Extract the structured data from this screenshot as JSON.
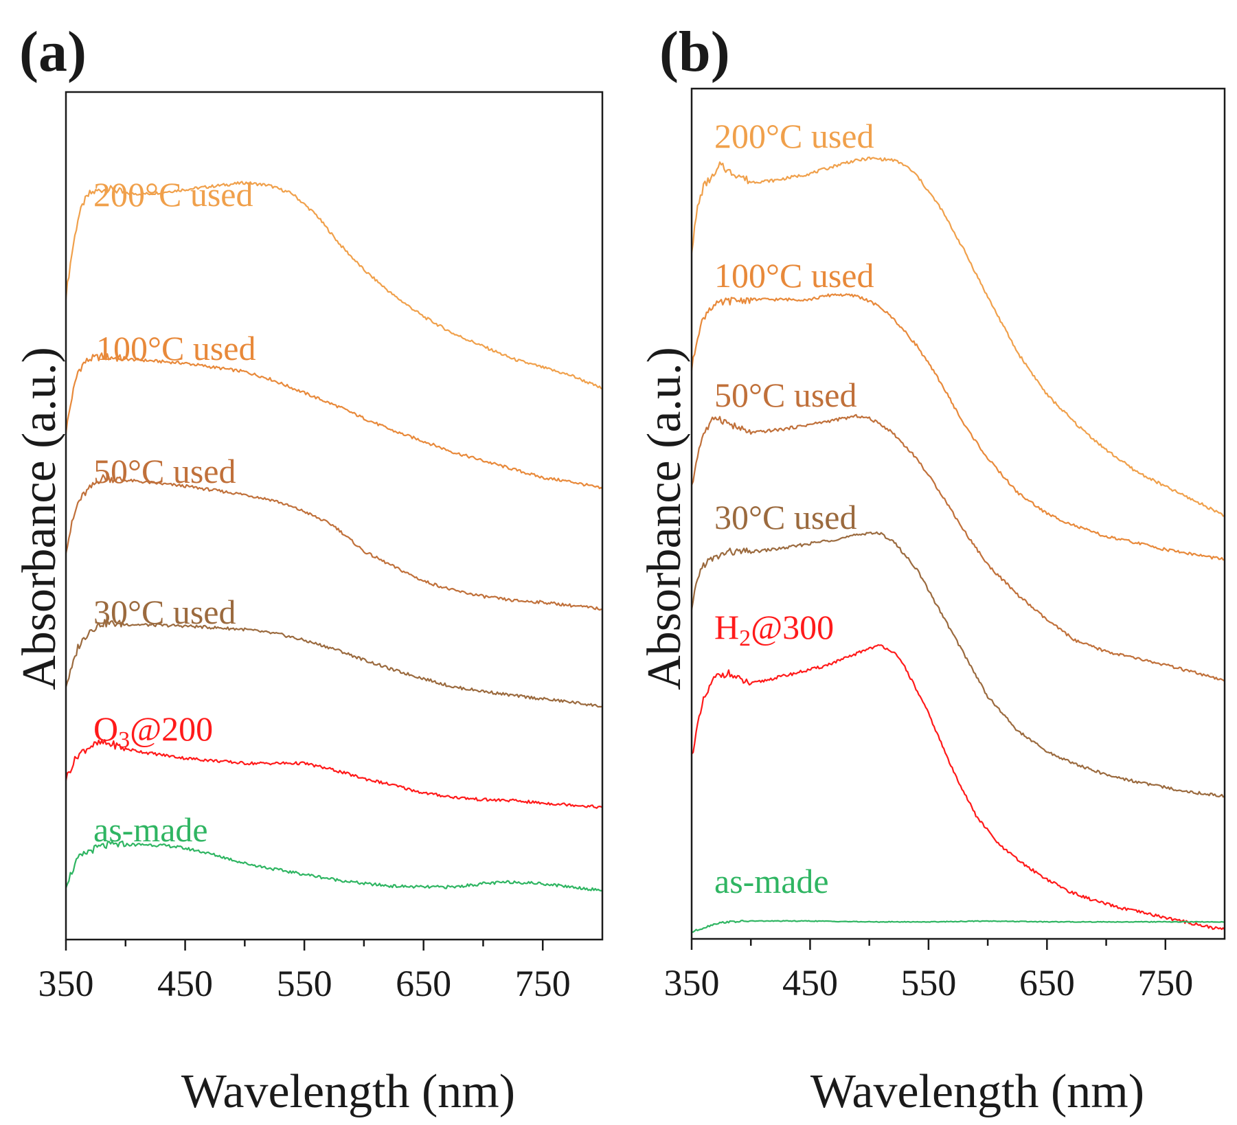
{
  "chart_data": [
    {
      "type": "line",
      "panel": "(a)",
      "xlabel": "Wavelength (nm)",
      "ylabel": "Absorbance (a.u.)",
      "xlim": [
        350,
        800
      ],
      "ylim": [
        0,
        100
      ],
      "xticks": [
        350,
        450,
        550,
        650,
        750
      ],
      "y_ticks_shown": false,
      "grid": false,
      "legend": "none (labels placed directly above each trace)",
      "series": [
        {
          "name": "200°C used",
          "label_main": "200°C used",
          "label_sub": "",
          "label_tail": "",
          "color": "#f0a04b",
          "x": [
            350,
            355,
            360,
            365,
            370,
            380,
            390,
            400,
            420,
            450,
            480,
            500,
            520,
            540,
            560,
            580,
            600,
            625,
            650,
            675,
            700,
            725,
            750,
            775,
            800
          ],
          "y": [
            76,
            81,
            85,
            87,
            88,
            88.5,
            88.5,
            88,
            88,
            88.5,
            89,
            89.3,
            89,
            88,
            85.5,
            82,
            79,
            76,
            73.5,
            71.5,
            70,
            68.5,
            67.5,
            66.5,
            65
          ]
        },
        {
          "name": "100°C used",
          "label_main": "100°C used",
          "label_sub": "",
          "label_tail": "",
          "color": "#e8893a",
          "x": [
            350,
            355,
            360,
            365,
            370,
            380,
            400,
            450,
            500,
            520,
            550,
            580,
            600,
            625,
            650,
            675,
            700,
            725,
            750,
            775,
            800
          ],
          "y": [
            60,
            64,
            67,
            68,
            68.5,
            68.8,
            68.5,
            68,
            67,
            66.2,
            64.5,
            62.8,
            61.5,
            60,
            58.8,
            57.5,
            56.5,
            55.5,
            54.5,
            54,
            53.2
          ]
        },
        {
          "name": "50°C used",
          "label_main": "50°C used",
          "label_sub": "",
          "label_tail": "",
          "color": "#c0703a",
          "x": [
            350,
            355,
            360,
            365,
            370,
            380,
            400,
            450,
            500,
            525,
            550,
            565,
            575,
            590,
            600,
            625,
            650,
            675,
            700,
            725,
            750,
            775,
            800
          ],
          "y": [
            46,
            49,
            51.5,
            52.5,
            53.2,
            54.5,
            54.2,
            53.5,
            52.5,
            51.8,
            50.5,
            49.5,
            48.8,
            47,
            45.8,
            44,
            42.3,
            41.2,
            40.5,
            40,
            39.8,
            39.4,
            39
          ]
        },
        {
          "name": "30°C used",
          "label_main": "30°C used",
          "label_sub": "",
          "label_tail": "",
          "color": "#9b6a3e",
          "x": [
            350,
            355,
            360,
            370,
            380,
            390,
            400,
            450,
            500,
            530,
            550,
            575,
            600,
            625,
            650,
            675,
            700,
            725,
            750,
            775,
            800
          ],
          "y": [
            30,
            32,
            34.5,
            36.5,
            37.3,
            37.3,
            37.2,
            37,
            36.6,
            36,
            35.3,
            34.3,
            33,
            31.8,
            30.8,
            29.8,
            29.3,
            28.8,
            28.4,
            28,
            27.5
          ]
        },
        {
          "name": "O3@200",
          "label_main": "O",
          "label_sub": "3",
          "label_tail": "@200",
          "color": "#ff1a1a",
          "x": [
            350,
            355,
            360,
            370,
            380,
            390,
            400,
            420,
            450,
            500,
            530,
            550,
            575,
            600,
            625,
            650,
            675,
            700,
            725,
            750,
            775,
            800
          ],
          "y": [
            19,
            20.5,
            21.8,
            22.8,
            23.2,
            23,
            22.5,
            22,
            21.4,
            20.8,
            20.8,
            20.8,
            20,
            19,
            18.2,
            17.3,
            16.8,
            16.5,
            16.4,
            16.1,
            15.9,
            15.6
          ]
        },
        {
          "name": "as-made",
          "label_main": "as-made",
          "label_sub": "",
          "label_tail": "",
          "color": "#2fb562",
          "x": [
            350,
            355,
            360,
            370,
            380,
            390,
            400,
            420,
            440,
            460,
            480,
            500,
            525,
            550,
            575,
            600,
            625,
            650,
            675,
            700,
            725,
            750,
            775,
            800
          ],
          "y": [
            6.5,
            8,
            9.5,
            10.5,
            11,
            11.2,
            11.2,
            11.2,
            11,
            10.5,
            9.8,
            9,
            8.3,
            7.7,
            7.1,
            6.6,
            6.3,
            6.2,
            6.2,
            6.6,
            6.8,
            6.6,
            6.2,
            5.8
          ]
        }
      ]
    },
    {
      "type": "line",
      "panel": "(b)",
      "xlabel": "Wavelength (nm)",
      "ylabel": "Absorbance (a.u.)",
      "xlim": [
        350,
        800
      ],
      "ylim": [
        0,
        100
      ],
      "xticks": [
        350,
        450,
        550,
        650,
        750
      ],
      "y_ticks_shown": false,
      "grid": false,
      "legend": "none (labels placed directly above each trace)",
      "series": [
        {
          "name": "200°C used",
          "label_main": "200°C used",
          "label_sub": "",
          "label_tail": "",
          "color": "#f0a04b",
          "x": [
            350,
            355,
            360,
            365,
            370,
            375,
            380,
            390,
            400,
            420,
            450,
            480,
            500,
            520,
            530,
            540,
            560,
            580,
            600,
            625,
            650,
            675,
            700,
            725,
            750,
            775,
            800
          ],
          "y": [
            81,
            86,
            88.5,
            89.3,
            89.8,
            91.3,
            90.3,
            89.8,
            89,
            89.2,
            90,
            91.3,
            91.8,
            91.6,
            91,
            89.8,
            86,
            81,
            75.5,
            69,
            64,
            60.5,
            57.5,
            55,
            53.2,
            51.5,
            49.8
          ]
        },
        {
          "name": "100°C used",
          "label_main": "100°C used",
          "label_sub": "",
          "label_tail": "",
          "color": "#e8893a",
          "x": [
            350,
            355,
            360,
            365,
            370,
            380,
            400,
            450,
            470,
            490,
            500,
            510,
            520,
            540,
            560,
            580,
            600,
            625,
            650,
            675,
            700,
            725,
            750,
            775,
            800
          ],
          "y": [
            67,
            71,
            73,
            74.2,
            74.5,
            75,
            75.2,
            75.2,
            75.8,
            75.6,
            75,
            74.2,
            73,
            69.8,
            65.5,
            60.5,
            56.5,
            52.5,
            50,
            48.5,
            47.3,
            46.6,
            45.8,
            45.2,
            44.6
          ]
        },
        {
          "name": "50°C used",
          "label_main": "50°C used",
          "label_sub": "",
          "label_tail": "",
          "color": "#c0703a",
          "x": [
            350,
            355,
            360,
            365,
            370,
            380,
            390,
            400,
            430,
            450,
            470,
            490,
            500,
            510,
            520,
            540,
            560,
            580,
            600,
            625,
            650,
            675,
            700,
            725,
            750,
            775,
            800
          ],
          "y": [
            53,
            57,
            59.5,
            60.3,
            61.5,
            60.7,
            60,
            59.5,
            60,
            60.5,
            61,
            61.5,
            61.2,
            60.5,
            59.5,
            56.5,
            52.5,
            48,
            44,
            40.5,
            37.5,
            35,
            33.8,
            33,
            32.2,
            31.3,
            30.3
          ]
        },
        {
          "name": "30°C used",
          "label_main": "30°C used",
          "label_sub": "",
          "label_tail": "",
          "color": "#9b6a3e",
          "x": [
            350,
            355,
            360,
            365,
            370,
            380,
            400,
            430,
            450,
            480,
            500,
            510,
            520,
            540,
            560,
            580,
            600,
            625,
            650,
            675,
            700,
            725,
            750,
            775,
            800
          ],
          "y": [
            38.5,
            42.5,
            44,
            44.5,
            44.8,
            45.5,
            45.5,
            46,
            46.5,
            47.2,
            47.8,
            47.6,
            46.8,
            43.5,
            38.5,
            33.5,
            28.5,
            24.5,
            22,
            20.5,
            19.3,
            18.5,
            17.8,
            17.2,
            16.8
          ]
        },
        {
          "name": "H2@300",
          "label_main": "H",
          "label_sub": "2",
          "label_tail": "@300",
          "color": "#ff1a1a",
          "x": [
            350,
            355,
            360,
            365,
            370,
            380,
            390,
            400,
            430,
            460,
            480,
            500,
            510,
            520,
            530,
            550,
            570,
            590,
            610,
            630,
            650,
            670,
            690,
            710,
            730,
            750,
            770,
            790,
            800
          ],
          "y": [
            21.5,
            25,
            28,
            29.5,
            30.8,
            31.3,
            30.5,
            30,
            31,
            32,
            33,
            34.2,
            34.5,
            33.8,
            32,
            26.5,
            20,
            14.5,
            11,
            8.8,
            7,
            5.5,
            4.5,
            3.7,
            3.1,
            2.5,
            1.9,
            1.3,
            1.1
          ]
        },
        {
          "name": "as-made",
          "label_main": "as-made",
          "label_sub": "",
          "label_tail": "",
          "color": "#2fb562",
          "x": [
            350,
            360,
            370,
            380,
            400,
            450,
            500,
            550,
            600,
            650,
            700,
            750,
            800
          ],
          "y": [
            0.8,
            1.3,
            1.8,
            2,
            2.1,
            2.1,
            2,
            2,
            2.1,
            2,
            2,
            2,
            2
          ]
        }
      ]
    }
  ]
}
